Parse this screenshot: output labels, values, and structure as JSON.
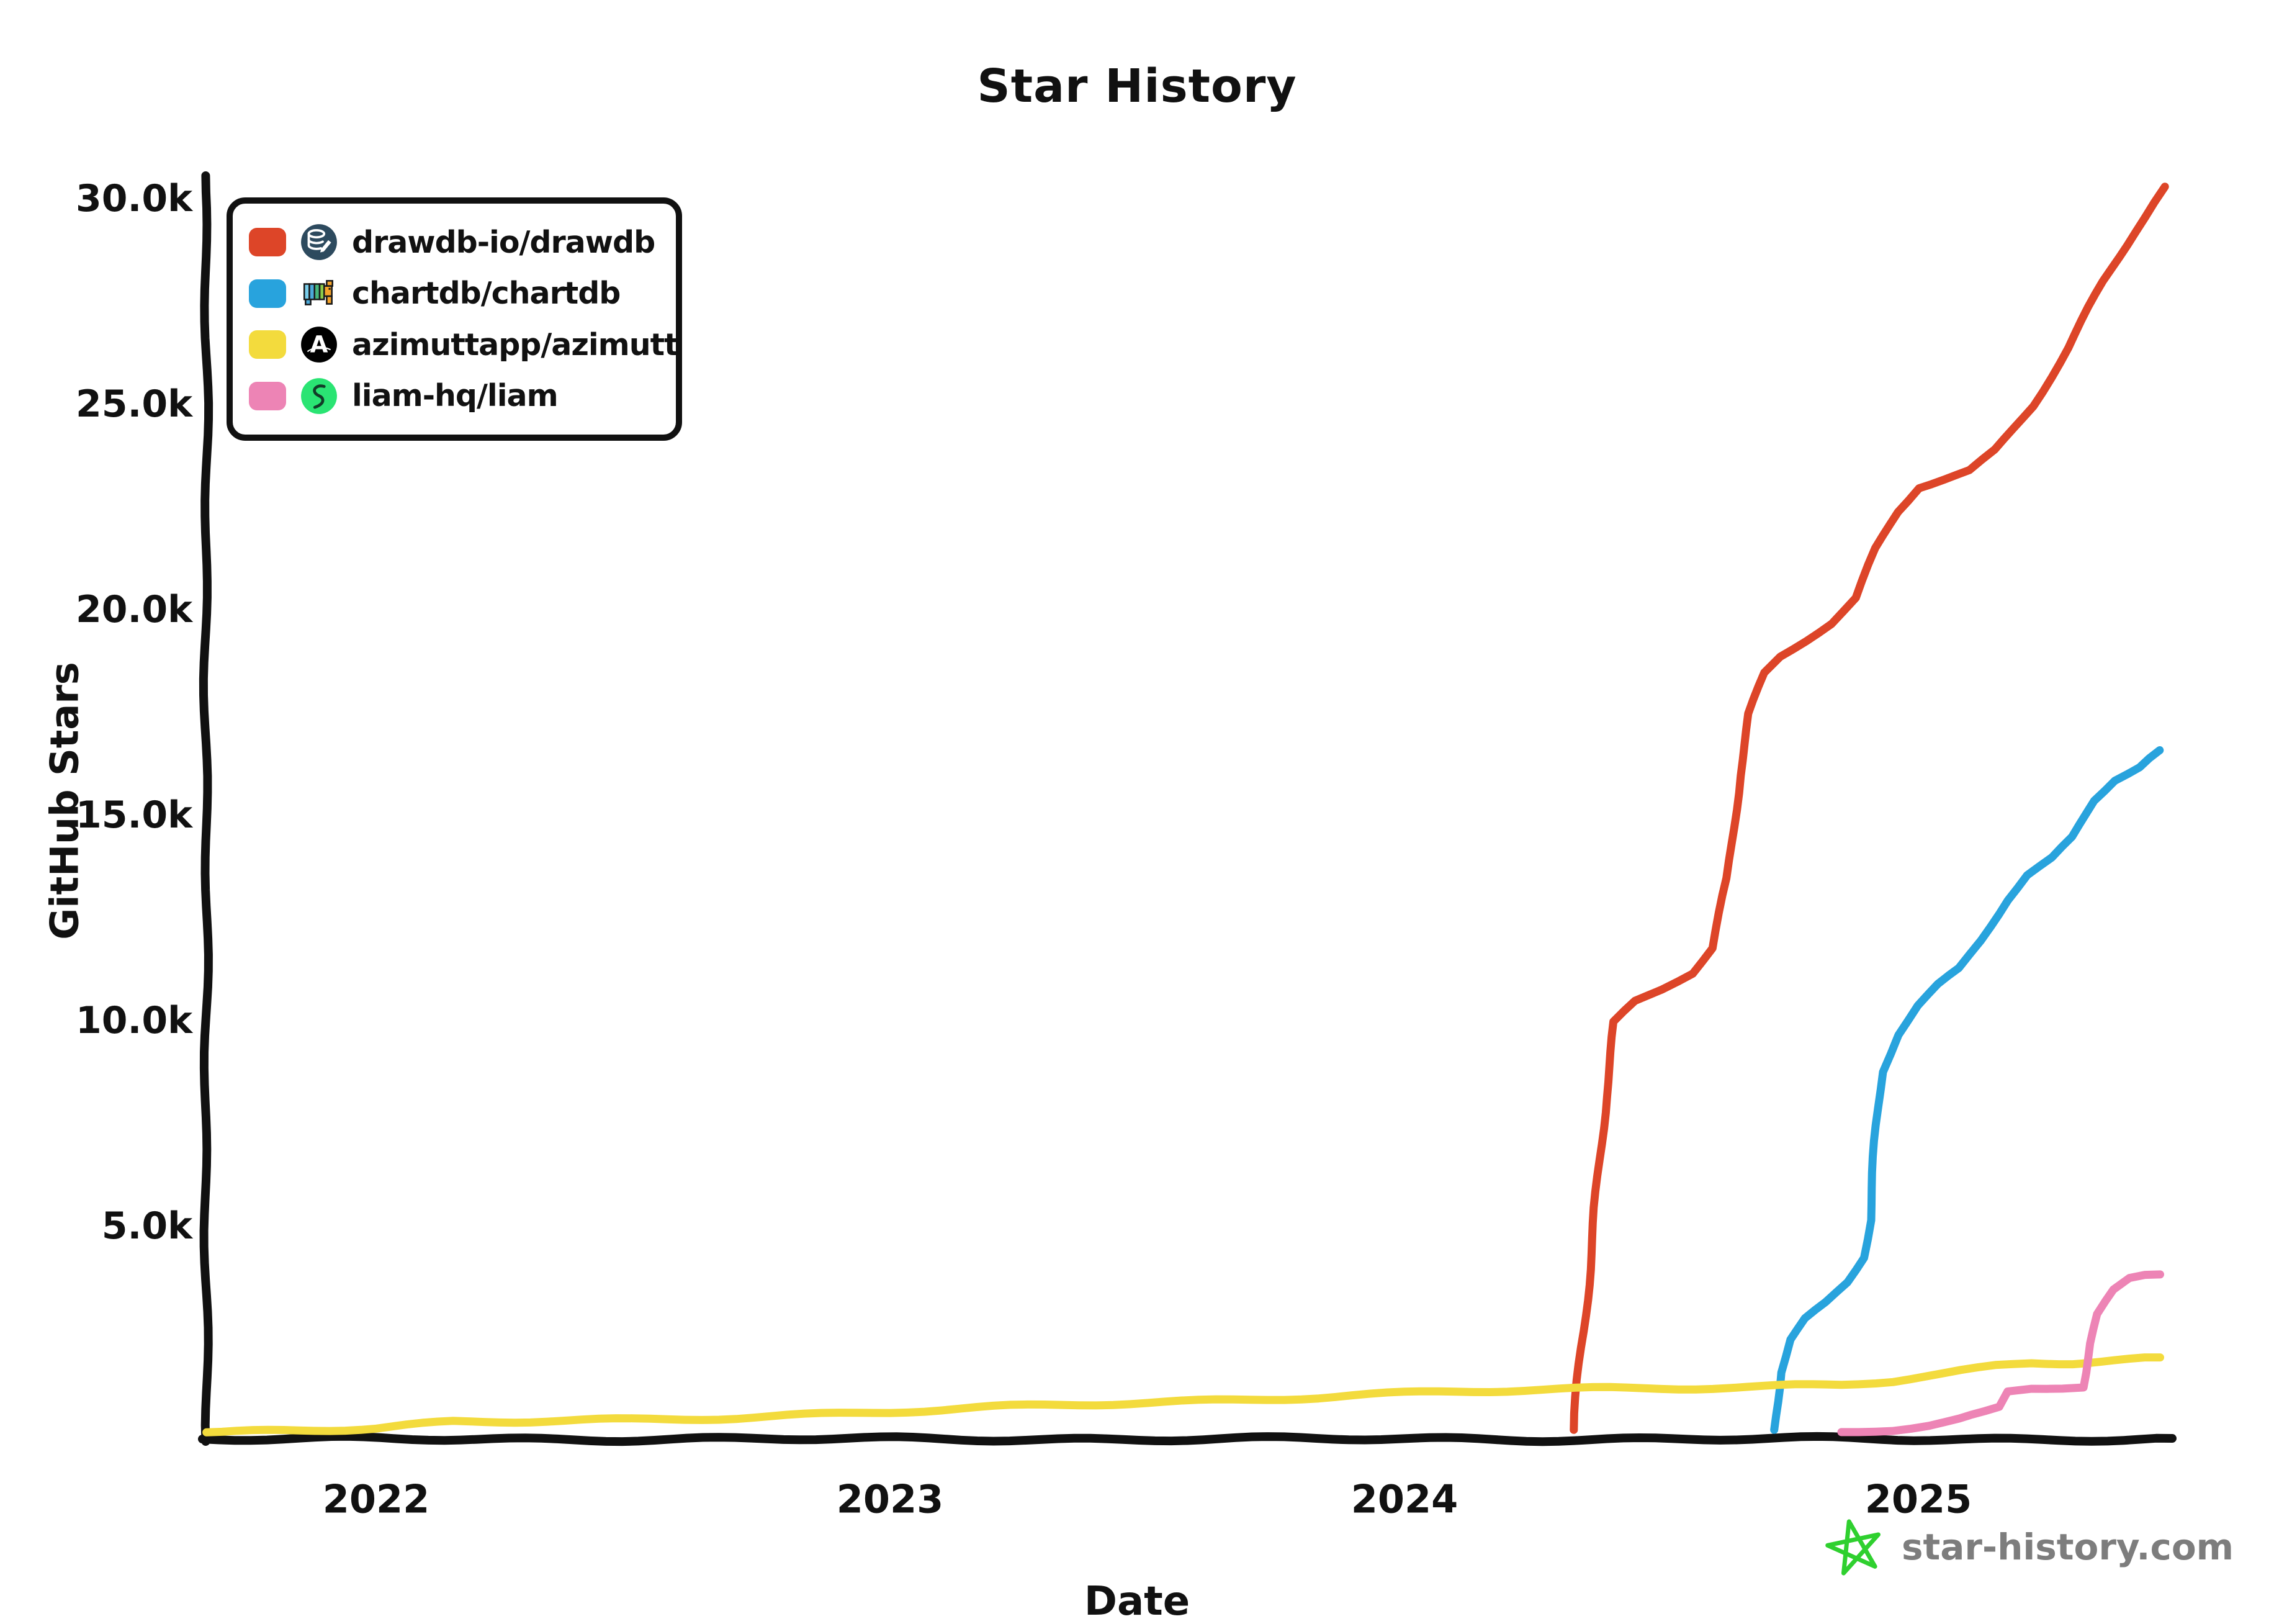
{
  "title": "Star History",
  "axes": {
    "x_label": "Date",
    "y_label": "GitHub Stars"
  },
  "watermark": {
    "text": "star-history.com",
    "star_color": "#2fd02f",
    "text_color": "#7d7d7d"
  },
  "legend": [
    {
      "label": "drawdb-io/drawdb",
      "color": "#dd4528",
      "icon": "drawdb-database-pencil-icon"
    },
    {
      "label": "chartdb/chartdb",
      "color": "#28a3dd",
      "icon": "chartdb-pixel-elephant-icon"
    },
    {
      "label": "azimuttapp/azimutt",
      "color": "#f3db3d",
      "icon": "azimutt-a-icon"
    },
    {
      "label": "liam-hq/liam",
      "color": "#ed84b5",
      "icon": "liam-glyph-icon"
    }
  ],
  "chart_data": {
    "type": "line",
    "title": "Star History",
    "xlabel": "Date",
    "ylabel": "GitHub Stars",
    "grid": false,
    "legend_position": "top-left",
    "style": "xkcd-hand-drawn",
    "x_axis": {
      "ticks": [
        "2022",
        "2023",
        "2024",
        "2025"
      ],
      "tick_values": [
        2022,
        2023,
        2024,
        2025
      ],
      "range": [
        2021.65,
        2025.5
      ],
      "unit": "year"
    },
    "y_axis": {
      "tick_labels": [
        "30.0k",
        "25.0k",
        "20.0k",
        "15.0k",
        "10.0k",
        "5.0k"
      ],
      "tick_values_k": [
        30,
        25,
        20,
        15,
        10,
        5
      ],
      "range_k": [
        0,
        30.6
      ],
      "unit": "GitHub stars (thousands)"
    },
    "series": [
      {
        "name": "drawdb-io/drawdb",
        "color": "#dd4528",
        "points_year_kstars": [
          [
            2024.33,
            0.1
          ],
          [
            2024.35,
            2.5
          ],
          [
            2024.37,
            5.5
          ],
          [
            2024.39,
            8.2
          ],
          [
            2024.41,
            10.0
          ],
          [
            2024.45,
            10.5
          ],
          [
            2024.5,
            10.8
          ],
          [
            2024.56,
            11.2
          ],
          [
            2024.6,
            11.8
          ],
          [
            2024.63,
            13.5
          ],
          [
            2024.65,
            16.0
          ],
          [
            2024.67,
            17.5
          ],
          [
            2024.7,
            18.5
          ],
          [
            2024.73,
            18.9
          ],
          [
            2024.78,
            19.3
          ],
          [
            2024.83,
            19.7
          ],
          [
            2024.88,
            20.3
          ],
          [
            2024.92,
            21.5
          ],
          [
            2024.96,
            22.4
          ],
          [
            2025.0,
            23.0
          ],
          [
            2025.05,
            23.2
          ],
          [
            2025.1,
            23.4
          ],
          [
            2025.15,
            23.9
          ],
          [
            2025.22,
            25.0
          ],
          [
            2025.29,
            26.4
          ],
          [
            2025.36,
            28.0
          ],
          [
            2025.42,
            29.2
          ],
          [
            2025.48,
            30.3
          ]
        ]
      },
      {
        "name": "chartdb/chartdb",
        "color": "#28a3dd",
        "points_year_kstars": [
          [
            2024.72,
            0.1
          ],
          [
            2024.73,
            1.5
          ],
          [
            2024.75,
            2.3
          ],
          [
            2024.78,
            2.8
          ],
          [
            2024.82,
            3.2
          ],
          [
            2024.86,
            3.7
          ],
          [
            2024.89,
            4.3
          ],
          [
            2024.905,
            5.2
          ],
          [
            2024.92,
            7.5
          ],
          [
            2024.93,
            8.8
          ],
          [
            2024.96,
            9.7
          ],
          [
            2025.0,
            10.4
          ],
          [
            2025.04,
            10.9
          ],
          [
            2025.08,
            11.3
          ],
          [
            2025.12,
            12.0
          ],
          [
            2025.17,
            13.0
          ],
          [
            2025.21,
            13.6
          ],
          [
            2025.26,
            14.0
          ],
          [
            2025.3,
            14.5
          ],
          [
            2025.34,
            15.4
          ],
          [
            2025.38,
            15.9
          ],
          [
            2025.43,
            16.2
          ],
          [
            2025.47,
            16.6
          ]
        ]
      },
      {
        "name": "azimuttapp/azimutt",
        "color": "#f3db3d",
        "points_year_kstars": [
          [
            2021.67,
            0.05
          ],
          [
            2022.0,
            0.15
          ],
          [
            2022.15,
            0.27
          ],
          [
            2022.3,
            0.3
          ],
          [
            2022.5,
            0.35
          ],
          [
            2022.7,
            0.42
          ],
          [
            2022.9,
            0.5
          ],
          [
            2023.1,
            0.58
          ],
          [
            2023.3,
            0.68
          ],
          [
            2023.5,
            0.77
          ],
          [
            2023.7,
            0.85
          ],
          [
            2023.9,
            0.95
          ],
          [
            2024.1,
            1.02
          ],
          [
            2024.3,
            1.07
          ],
          [
            2024.5,
            1.12
          ],
          [
            2024.7,
            1.17
          ],
          [
            2024.85,
            1.22
          ],
          [
            2024.95,
            1.3
          ],
          [
            2025.05,
            1.45
          ],
          [
            2025.15,
            1.62
          ],
          [
            2025.22,
            1.7
          ],
          [
            2025.3,
            1.72
          ],
          [
            2025.38,
            1.78
          ],
          [
            2025.47,
            1.85
          ]
        ]
      },
      {
        "name": "liam-hq/liam",
        "color": "#ed84b5",
        "points_year_kstars": [
          [
            2024.85,
            0.05
          ],
          [
            2024.95,
            0.12
          ],
          [
            2025.02,
            0.22
          ],
          [
            2025.08,
            0.35
          ],
          [
            2025.13,
            0.5
          ],
          [
            2025.16,
            0.62
          ],
          [
            2025.175,
            1.0
          ],
          [
            2025.22,
            1.08
          ],
          [
            2025.28,
            1.12
          ],
          [
            2025.32,
            1.15
          ],
          [
            2025.335,
            2.2
          ],
          [
            2025.35,
            2.9
          ],
          [
            2025.38,
            3.5
          ],
          [
            2025.41,
            3.8
          ],
          [
            2025.44,
            3.9
          ],
          [
            2025.47,
            3.9
          ]
        ]
      }
    ]
  }
}
